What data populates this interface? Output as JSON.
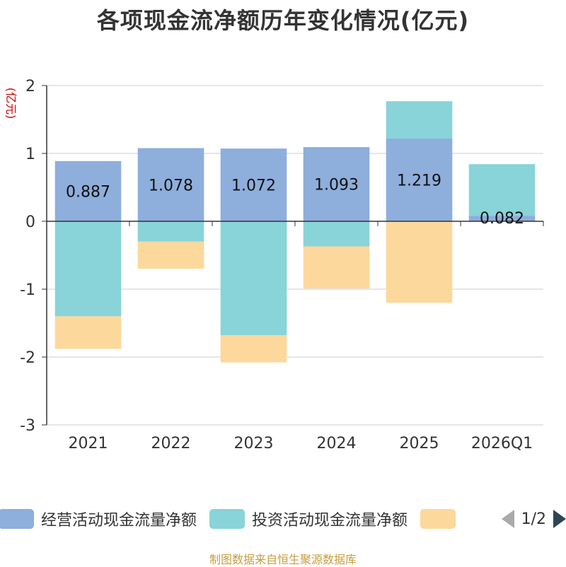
{
  "chart_data": {
    "type": "bar",
    "title": "各项现金流净额历年变化情况(亿元)",
    "ylabel": "(亿元)",
    "xlabel": "",
    "ylim": [
      -3,
      2
    ],
    "yticks": [
      2,
      1,
      0,
      -1,
      -2,
      -3
    ],
    "grid": true,
    "stacked": true,
    "categories": [
      "2021",
      "2022",
      "2023",
      "2024",
      "2025",
      "2026Q1"
    ],
    "series": [
      {
        "name": "经营活动现金流量净额",
        "color": "#8eaedc",
        "values": [
          0.887,
          1.078,
          1.072,
          1.093,
          1.219,
          0.082
        ],
        "labels": [
          "0.887",
          "1.078",
          "1.072",
          "1.093",
          "1.219",
          "0.082"
        ]
      },
      {
        "name": "投资活动现金流量净额",
        "color": "#88d4d8",
        "values": [
          -1.4,
          -0.3,
          -1.68,
          -0.37,
          0.55,
          0.76
        ]
      },
      {
        "name": "",
        "color": "#fdd89c",
        "values": [
          -0.48,
          -0.4,
          -0.4,
          -0.62,
          -1.2,
          0
        ]
      }
    ]
  },
  "legend": {
    "page": "1/2"
  },
  "source": "制图数据来自恒生聚源数据库"
}
